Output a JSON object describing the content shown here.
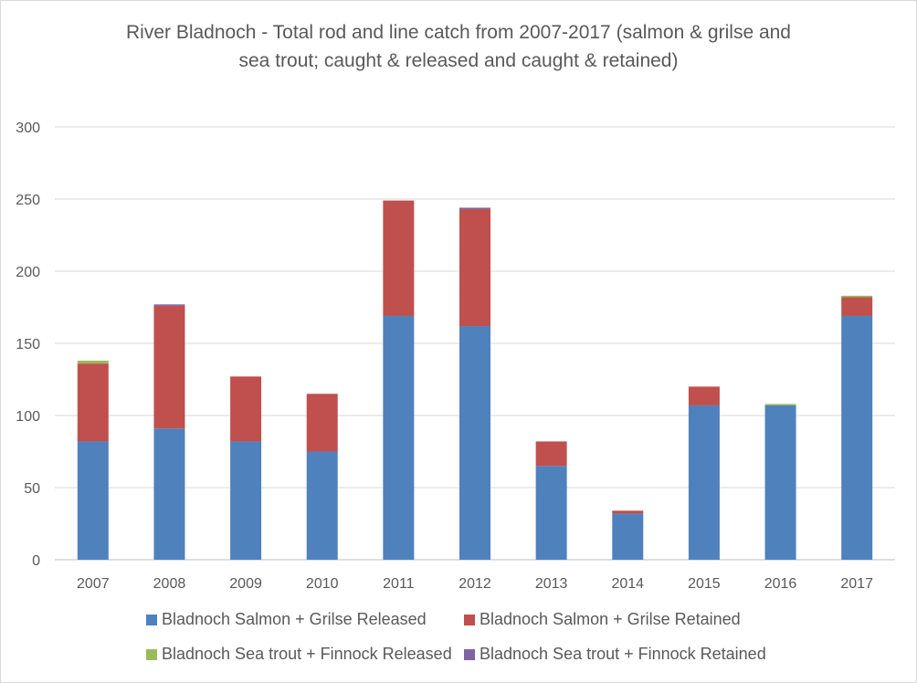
{
  "chart_data": {
    "type": "bar",
    "stacked": true,
    "title_line1": "River Bladnoch - Total rod and line catch from 2007-2017 (salmon & grilse and",
    "title_line2": "sea trout; caught & released and caught & retained)",
    "xlabel": "",
    "ylabel": "",
    "ylim": [
      0,
      300
    ],
    "yticks": [
      "0",
      "50",
      "100",
      "150",
      "200",
      "250",
      "300"
    ],
    "grid": true,
    "legend_position": "bottom",
    "categories": [
      "2007",
      "2008",
      "2009",
      "2010",
      "2011",
      "2012",
      "2013",
      "2014",
      "2015",
      "2016",
      "2017"
    ],
    "series": [
      {
        "name": "Bladnoch Salmon + Grilse Released",
        "color": "#4f81bd",
        "values": [
          82,
          91,
          82,
          75,
          169,
          162,
          65,
          32,
          107,
          107,
          169
        ]
      },
      {
        "name": "Bladnoch Salmon + Grilse Retained",
        "color": "#c0504d",
        "values": [
          54,
          85,
          45,
          40,
          80,
          81,
          17,
          2,
          13,
          0,
          13
        ]
      },
      {
        "name": "Bladnoch Sea trout + Finnock Released",
        "color": "#9bbb59",
        "values": [
          2,
          0,
          0,
          0,
          0,
          0,
          0,
          0,
          0,
          1,
          1
        ]
      },
      {
        "name": "Bladnoch Sea trout + Finnock Retained",
        "color": "#8064a2",
        "values": [
          0,
          1,
          0,
          0,
          0,
          1,
          0,
          0,
          0,
          0,
          0
        ]
      }
    ]
  }
}
